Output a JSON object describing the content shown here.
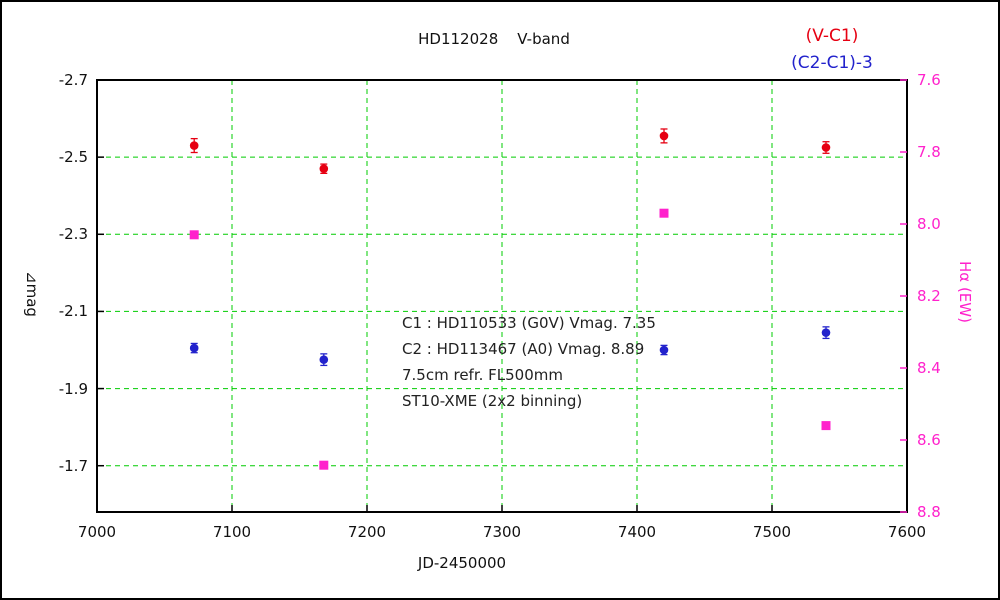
{
  "chart_data": {
    "type": "scatter",
    "title": "HD112028    V-band",
    "legend": [
      {
        "label": "(V-C1)",
        "color": "#e60012"
      },
      {
        "label": "(C2-C1)-3",
        "color": "#2222cc"
      }
    ],
    "x_axis": {
      "label": "JD-2450000",
      "range": [
        7000,
        7600
      ],
      "ticks": [
        {
          "v": 7000,
          "label": "7000"
        },
        {
          "v": 7100,
          "label": "7100"
        },
        {
          "v": 7200,
          "label": "7200"
        },
        {
          "v": 7300,
          "label": "7300"
        },
        {
          "v": 7400,
          "label": "7400"
        },
        {
          "v": 7500,
          "label": "7500"
        },
        {
          "v": 7600,
          "label": "7600"
        }
      ]
    },
    "y_axis_left": {
      "label": "⊿mag",
      "range": [
        -2.7,
        -1.58
      ],
      "ticks": [
        {
          "v": -2.7,
          "label": "-2.7"
        },
        {
          "v": -2.5,
          "label": "-2.5"
        },
        {
          "v": -2.3,
          "label": "-2.3"
        },
        {
          "v": -2.1,
          "label": "-2.1"
        },
        {
          "v": -1.9,
          "label": "-1.9"
        },
        {
          "v": -1.7,
          "label": "-1.7"
        }
      ]
    },
    "y_axis_right": {
      "label": "Hα (EW)",
      "color": "#ff22cc",
      "range": [
        7.6,
        8.8
      ],
      "ticks": [
        {
          "v": 7.6,
          "label": "7.6"
        },
        {
          "v": 7.8,
          "label": "7.8"
        },
        {
          "v": 8.0,
          "label": "8.0"
        },
        {
          "v": 8.2,
          "label": "8.2"
        },
        {
          "v": 8.4,
          "label": "8.4"
        },
        {
          "v": 8.6,
          "label": "8.6"
        },
        {
          "v": 8.8,
          "label": "8.8"
        }
      ]
    },
    "grid": {
      "color": "#00cc00",
      "style": "dashed"
    },
    "series": [
      {
        "name": "(V-C1)",
        "axis": "left",
        "marker": "circle",
        "color": "#e60012",
        "points": [
          {
            "x": 7072,
            "y": -2.53,
            "err": 0.018
          },
          {
            "x": 7168,
            "y": -2.47,
            "err": 0.012
          },
          {
            "x": 7420,
            "y": -2.555,
            "err": 0.018
          },
          {
            "x": 7540,
            "y": -2.525,
            "err": 0.015
          }
        ]
      },
      {
        "name": "(C2-C1)-3",
        "axis": "left",
        "marker": "circle",
        "color": "#2222cc",
        "points": [
          {
            "x": 7072,
            "y": -2.005,
            "err": 0.012
          },
          {
            "x": 7168,
            "y": -1.975,
            "err": 0.015
          },
          {
            "x": 7420,
            "y": -2.0,
            "err": 0.012
          },
          {
            "x": 7540,
            "y": -2.045,
            "err": 0.015
          }
        ]
      },
      {
        "name": "Halpha EW",
        "axis": "right",
        "marker": "square",
        "color": "#ff22cc",
        "points": [
          {
            "x": 7072,
            "y": 8.03
          },
          {
            "x": 7168,
            "y": 8.67
          },
          {
            "x": 7420,
            "y": 7.97
          },
          {
            "x": 7540,
            "y": 8.56
          }
        ]
      }
    ],
    "annotations": [
      "C1 : HD110533 (G0V) Vmag. 7.35",
      "C2 : HD113467 (A0) Vmag. 8.89",
      "7.5cm refr. FL500mm",
      "ST10-XME (2x2 binning)"
    ]
  }
}
